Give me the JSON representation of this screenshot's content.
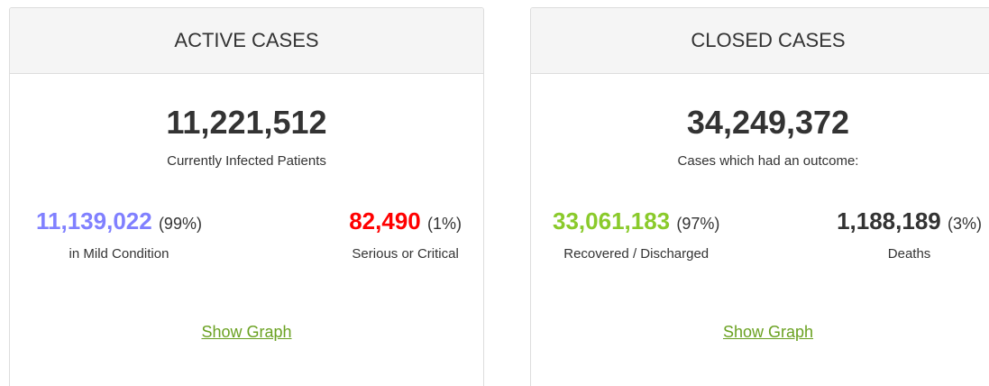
{
  "panels": [
    {
      "title": "ACTIVE CASES",
      "total": "11,221,512",
      "total_label": "Currently Infected Patients",
      "breakdown": [
        {
          "value": "11,139,022",
          "percent": "(99%)",
          "label": "in Mild Condition"
        },
        {
          "value": "82,490",
          "percent": "(1%)",
          "label": "Serious or Critical"
        }
      ],
      "link": "Show Graph"
    },
    {
      "title": "CLOSED CASES",
      "total": "34,249,372",
      "total_label": "Cases which had an outcome:",
      "breakdown": [
        {
          "value": "33,061,183",
          "percent": "(97%)",
          "label": "Recovered / Discharged"
        },
        {
          "value": "1,188,189",
          "percent": "(3%)",
          "label": "Deaths"
        }
      ],
      "link": "Show Graph"
    }
  ]
}
